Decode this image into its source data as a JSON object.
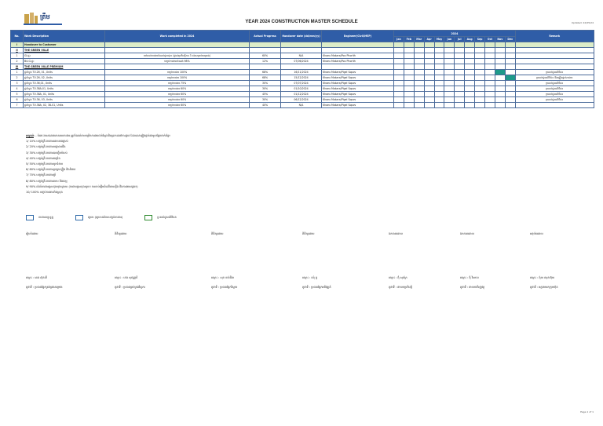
{
  "header": {
    "title": "YEAR 2024 CONSTRUCTION MASTER SCHEDULE",
    "updated": "Updated: 22/05/24",
    "logo_text": "ត្រឹម"
  },
  "table": {
    "headers": {
      "no": "No.",
      "work": "Work Description",
      "completed": "Work completed in 2024",
      "progress": "Actual Progress",
      "handover": "Handover date (dd/mm/yy)",
      "engineer": "Engineer(Civil/MEP)",
      "year": "2024",
      "remark": "Remark"
    },
    "months": [
      "Jan",
      "Feb",
      "Mar",
      "Apr",
      "May",
      "Jun",
      "Jul",
      "Aug",
      "Sep",
      "Oct",
      "Nov",
      "Dec"
    ],
    "rows": [
      {
        "type": "group",
        "no": "I",
        "desc": "Handover to Customer"
      },
      {
        "type": "group",
        "no": "II",
        "desc": "THE GREEN VILLE"
      },
      {
        "type": "item",
        "no": "1",
        "desc": "GI-ផ្ទះ",
        "completed": "នៅសល់ការងារកំណត់ជួសជុល (ផ្ទាល់ប្រតិបត្តិការ 3 ដងសម្រាប់គម្រោង)",
        "progress": "60%",
        "handover": "N/A",
        "engineer": "Khoeu Makara/Pov Phorith",
        "bar": null,
        "remark": ""
      },
      {
        "type": "item",
        "no": "2",
        "desc": "B4-G-ផ្ទះ",
        "completed": "បញ្ចប់ការងារសំណង់ 98%",
        "progress": "12%",
        "handover": "07/06/2024",
        "engineer": "Khoeu Makara/Pov Phorith",
        "bar": null,
        "remark": ""
      },
      {
        "type": "group",
        "no": "III",
        "desc": "THE GREEN VILLE PREMIUM"
      },
      {
        "type": "item",
        "no": "1",
        "desc": "ផ្ទះល្វែង TV-26, 01, Units",
        "completed": "បញ្ចប់ការងារ 100%",
        "progress": "68%",
        "handover": "16/11/2024",
        "engineer": "Khoeu Makara/Pigel Sopov",
        "bar": 10,
        "remark": "ប្រគល់ជូនអតិថិជន"
      },
      {
        "type": "item",
        "no": "2",
        "desc": "ផ្ទះល្វែង TV-26, 02, Units",
        "completed": "បញ្ចប់ការងារ 100%",
        "progress": "68%",
        "handover": "15/12/2024",
        "engineer": "Khoeu Makara/Pigel Sopov",
        "bar": 11,
        "remark": "ប្រគល់ជូនអតិថិជន និងផ្ទៀងផ្ទាត់ការងារ"
      },
      {
        "type": "item",
        "no": "3",
        "desc": "ផ្ទះល្វែង TV-36,01, Units",
        "completed": "បញ្ចប់ការងារ 75%",
        "progress": "30%",
        "handover": "07/07/2024",
        "engineer": "Khoeu Makara/Pigel Sopov",
        "bar": null,
        "remark": "ប្រគល់ជូនអតិថិជន"
      },
      {
        "type": "item",
        "no": "4",
        "desc": "ផ្ទះល្វែង TV-38A-01, Units",
        "completed": "បញ្ចប់ការងារ 60%",
        "progress": "30%",
        "handover": "01/10/2024",
        "engineer": "Khoeu Makara/Pigel Sopov",
        "bar": null,
        "remark": "ប្រគល់ជូនអតិថិជន"
      },
      {
        "type": "item",
        "no": "5",
        "desc": "ផ្ទះល្វែង TV-38A, 01, Units",
        "completed": "បញ្ចប់ការងារ 60%",
        "progress": "45%",
        "handover": "01/12/2024",
        "engineer": "Khoeu Makara/Pigel Sopov",
        "bar": null,
        "remark": "ប្រគល់ជូនអតិថិជន"
      },
      {
        "type": "item",
        "no": "6",
        "desc": "ផ្ទះល្វែង TV-36, 03, Units",
        "completed": "បញ្ចប់ការងារ 60%",
        "progress": "30%",
        "handover": "06/12/2024",
        "engineer": "Khoeu Makara/Pigel Sopov",
        "bar": null,
        "remark": "ប្រគល់ជូនអតិថិជន"
      },
      {
        "type": "item",
        "no": "7",
        "desc": "ផ្ទះល្វែង TV-38A, 02, 38-01, Units",
        "completed": "បញ្ចប់ការងារ 60%",
        "progress": "40%",
        "handover": "N/A",
        "engineer": "Khoeu Makara/Pigel Sopov",
        "bar": null,
        "remark": ""
      }
    ]
  },
  "notes": {
    "lead": "សម្គាល់",
    "intro": ": - ចំពោះការគណនាភាគរយការងារ ត្រូវកំណត់តាមកម្រិតការងារជាក់ស្ដែងពិតប្រាកដនៅការដ្ឋាន ដែលបានផ្ទៀងផ្ទាត់ជាមួយផ្នែកពាក់ព័ន្ធ៖",
    "items": [
      "1/ 10% បញ្ចប់គ្រឹះការងារដោយរាងផ្លាស់",
      "2/ 20% បញ្ចប់គ្រឹះការងារបង្គោលជើង",
      "3/ 30% បញ្ចប់គ្រឹះការងារបាតធ្នឹមកំពស់",
      "4/ 40% បញ្ចប់គ្រឹះការងារជញ្ជាំង",
      "5/ 50% បញ្ចប់គ្រឹះការងារបូកទំនាប",
      "6/ 60% បញ្ចប់គ្រឹះការងារក្រឡាក្បឿង និងពិដាន",
      "7/ 70% បញ្ចប់គ្រឹះការងារថ្នាំ",
      "8/ 80% បញ្ចប់គ្រឹះការងារលាប និងលម្អ",
      "9/ 90% រង់ចាំការងារជួសជុលចុងក្រោយ (ការងារជួសជុលតូចៗ ការចាប់ផ្តើមដំណើរការភ្លើង និងការងារផ្សេងៗ)",
      "10/ 100% បញ្ចប់ការងារទាំងស្រុង"
    ]
  },
  "legend": [
    {
      "label": "ការងារបច្ចុប្បន្ន",
      "color": "#2f6aa8"
    },
    {
      "label": "ព្យាករ (ព្យាករណ៍ការបញ្ចប់ការងារ)",
      "color": "#2f6aa8"
    },
    {
      "label": "ប្រគល់ជូនអតិថិជន",
      "color": "#2f8a2f"
    }
  ],
  "signatures": {
    "roles": [
      "រៀបចំដោយ",
      "ពិនិត្យដោយ",
      "ពិនិត្យដោយ",
      "ពិនិត្យដោយ",
      "ឯកភាពដោយ",
      "ឯកភាពដោយ",
      "អនុម័តដោយ"
    ],
    "names": [
      "ឈ្មោះ : ឆេង ស៊ុនលី",
      "ឈ្មោះ : ខេង សុវណ្ណារី",
      "ឈ្មោះ : សុខ ចាន់ធីតា",
      "ឈ្មោះ : ឈុំ ឌួ",
      "ឈ្មោះ : ង៉ុំ សុភ័ក្រ",
      "ឈ្មោះ : ង៉ុំ វិសាល",
      "ឈ្មោះ : ង៉ុយ ឈុនហ៊ុយ"
    ],
    "titles": [
      "តួនាទី : ប្រធានផ្នែកគ្រប់គ្រងគម្រោង",
      "តួនាទី : ប្រធានគ្រប់គ្រងវិស្វករ",
      "តួនាទី : ប្រធានផ្នែកវិស្វករ",
      "តួនាទី : ប្រធានផ្នែកអភិវឌ្ឍន៍",
      "តួនាទី : នាយកប្រតិបត្តិ",
      "តួនាទី : នាយកហិរញ្ញវត្ថុ",
      "តួនាទី : អគ្គនាយកក្រុមហ៊ុន"
    ]
  },
  "page": "Page 1 of 1"
}
